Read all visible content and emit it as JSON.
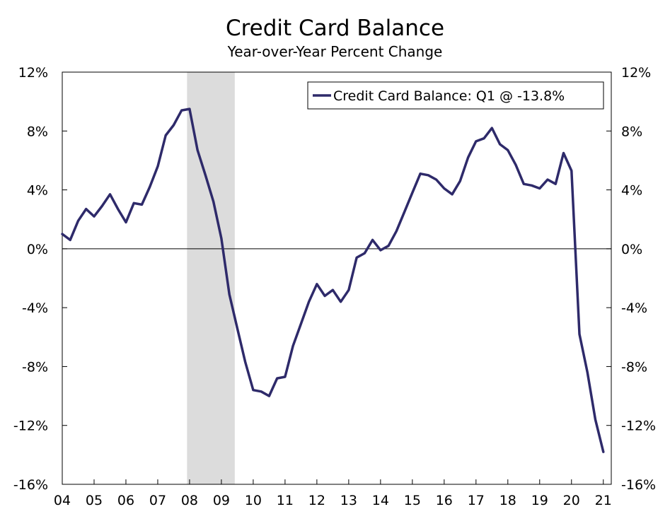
{
  "chart_data": {
    "type": "line",
    "title": "Credit Card Balance",
    "subtitle": "Year-over-Year Percent Change",
    "xlabel": "",
    "ylabel": "",
    "ylim": [
      -16,
      12
    ],
    "y_ticks": [
      12,
      8,
      4,
      0,
      -4,
      -8,
      -12,
      -16
    ],
    "y_tick_labels": [
      "12%",
      "8%",
      "4%",
      "0%",
      "-4%",
      "-8%",
      "-12%",
      "-16%"
    ],
    "x_range": [
      2004,
      2021.25
    ],
    "x_ticks": [
      2004,
      2005,
      2006,
      2007,
      2008,
      2009,
      2010,
      2011,
      2012,
      2013,
      2014,
      2015,
      2016,
      2017,
      2018,
      2019,
      2020,
      2021
    ],
    "x_tick_labels": [
      "04",
      "05",
      "06",
      "07",
      "08",
      "09",
      "10",
      "11",
      "12",
      "13",
      "14",
      "15",
      "16",
      "17",
      "18",
      "19",
      "20",
      "21"
    ],
    "recessions": [
      [
        2007.92,
        2009.42
      ]
    ],
    "legend_position": "top-right",
    "grid": false,
    "zero_line": true,
    "series": [
      {
        "name": "Credit Card Balance: Q1 @ -13.8%",
        "color": "#2e2a6a",
        "x": [
          2004.0,
          2004.25,
          2004.5,
          2004.75,
          2005.0,
          2005.25,
          2005.5,
          2005.75,
          2006.0,
          2006.25,
          2006.5,
          2006.75,
          2007.0,
          2007.25,
          2007.5,
          2007.75,
          2008.0,
          2008.25,
          2008.5,
          2008.75,
          2009.0,
          2009.25,
          2009.5,
          2009.75,
          2010.0,
          2010.25,
          2010.5,
          2010.75,
          2011.0,
          2011.25,
          2011.5,
          2011.75,
          2012.0,
          2012.25,
          2012.5,
          2012.75,
          2013.0,
          2013.25,
          2013.5,
          2013.75,
          2014.0,
          2014.25,
          2014.5,
          2014.75,
          2015.0,
          2015.25,
          2015.5,
          2015.75,
          2016.0,
          2016.25,
          2016.5,
          2016.75,
          2017.0,
          2017.25,
          2017.5,
          2017.75,
          2018.0,
          2018.25,
          2018.5,
          2018.75,
          2019.0,
          2019.25,
          2019.5,
          2019.75,
          2020.0,
          2020.25,
          2020.5,
          2020.75,
          2021.0
        ],
        "values": [
          1.0,
          0.6,
          1.9,
          2.7,
          2.2,
          2.9,
          3.7,
          2.7,
          1.8,
          3.1,
          3.0,
          4.2,
          5.6,
          7.7,
          8.4,
          9.4,
          9.5,
          6.7,
          5.0,
          3.2,
          0.7,
          -3.1,
          -5.4,
          -7.7,
          -9.6,
          -9.7,
          -10.0,
          -8.8,
          -8.7,
          -6.6,
          -5.1,
          -3.6,
          -2.4,
          -3.2,
          -2.8,
          -3.6,
          -2.8,
          -0.6,
          -0.3,
          0.6,
          -0.1,
          0.2,
          1.2,
          2.5,
          3.8,
          5.1,
          5.0,
          4.7,
          4.1,
          3.7,
          4.6,
          6.2,
          7.3,
          7.5,
          8.2,
          7.1,
          6.7,
          5.7,
          4.4,
          4.3,
          4.1,
          4.7,
          4.4,
          6.5,
          5.3,
          -5.8,
          -8.4,
          -11.6,
          -13.8
        ]
      }
    ]
  }
}
